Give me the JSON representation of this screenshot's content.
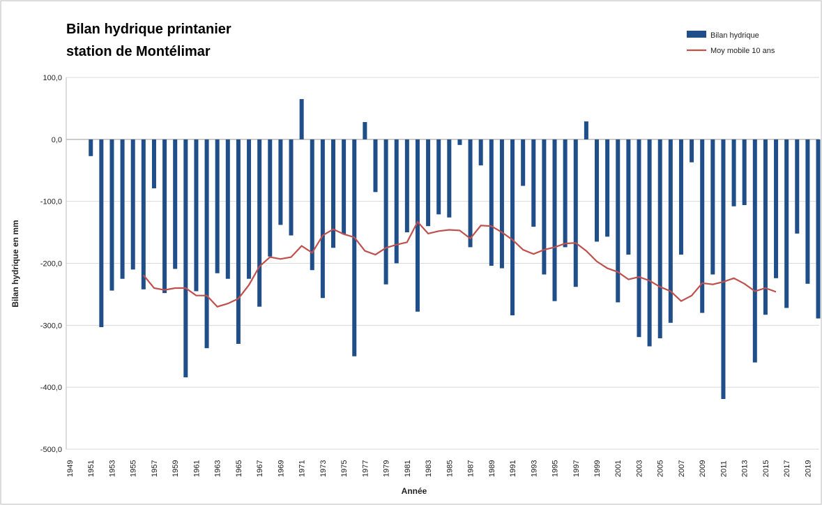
{
  "chart_data": {
    "type": "bar",
    "title": [
      "Bilan hydrique printanier",
      "station de Montélimar"
    ],
    "x_label": "Année",
    "y_label": "Bilan hydrique en mm",
    "categories": [
      "1949",
      null,
      "1951",
      null,
      "1953",
      null,
      "1955",
      null,
      "1957",
      null,
      "1959",
      null,
      "1961",
      null,
      "1963",
      null,
      "1965",
      null,
      "1967",
      null,
      "1969",
      null,
      "1971",
      null,
      "1973",
      null,
      "1975",
      null,
      "1977",
      null,
      "1979",
      null,
      "1981",
      null,
      "1983",
      null,
      "1985",
      null,
      "1987",
      null,
      "1989",
      null,
      "1991",
      null,
      "1993",
      null,
      "1995",
      null,
      "1997",
      null,
      "1999",
      null,
      "2001",
      null,
      "2003",
      null,
      "2005",
      null,
      "2007",
      null,
      "2009",
      null,
      "2011",
      null,
      "2013",
      null,
      "2015",
      null,
      "2017",
      null,
      "2019",
      null
    ],
    "series": [
      {
        "name": "Bilan hydrique",
        "type": "bar",
        "color": "#1f4e89",
        "values": [
          null,
          null,
          -27,
          -303,
          -244,
          -225,
          -210,
          -242,
          -79,
          -248,
          -209,
          -384,
          -245,
          -337,
          -216,
          -225,
          -330,
          -225,
          -270,
          -189,
          -138,
          -155,
          65,
          -211,
          -256,
          -175,
          -153,
          -350,
          28,
          -85,
          -234,
          -200,
          -150,
          -278,
          -140,
          -121,
          -126,
          -9,
          -174,
          -42,
          -204,
          -208,
          -284,
          -75,
          -141,
          -218,
          -261,
          -174,
          -238,
          29,
          -165,
          -157,
          -263,
          -186,
          -319,
          -334,
          -321,
          -296,
          -186,
          -37,
          -280,
          -218,
          -419,
          -108,
          -106,
          -360,
          -283,
          -224,
          -272,
          -152,
          -233,
          -289
        ]
      },
      {
        "name": "Moy mobile 10 ans",
        "type": "line",
        "color": "#c0504d",
        "values": [
          null,
          null,
          null,
          null,
          null,
          null,
          null,
          -219,
          -240,
          -243,
          -240,
          -240,
          -252,
          -252,
          -270,
          -265,
          -257,
          -235,
          -205,
          -190,
          -193,
          -190,
          -172,
          -183,
          -155,
          -145,
          -153,
          -158,
          -180,
          -186,
          -175,
          -170,
          -166,
          -133,
          -152,
          -148,
          -146,
          -147,
          -160,
          -139,
          -140,
          -150,
          -162,
          -178,
          -185,
          -178,
          -174,
          -168,
          -167,
          -180,
          -197,
          -208,
          -214,
          -226,
          -222,
          -228,
          -238,
          -245,
          -261,
          -252,
          -232,
          -234,
          -230,
          -224,
          -233,
          -245,
          -240,
          -246,
          null,
          null,
          null,
          null
        ]
      }
    ],
    "ylim": [
      -500,
      100
    ],
    "yticks": [
      {
        "value": -500,
        "label": "-500,0"
      },
      {
        "value": -400,
        "label": "-400,0"
      },
      {
        "value": -300,
        "label": "-300,0"
      },
      {
        "value": -200,
        "label": "-200,0"
      },
      {
        "value": -100,
        "label": "-100,0"
      },
      {
        "value": 0,
        "label": "0,0"
      },
      {
        "value": 100,
        "label": "100,0"
      }
    ],
    "grid": true,
    "legend": "top-right"
  }
}
